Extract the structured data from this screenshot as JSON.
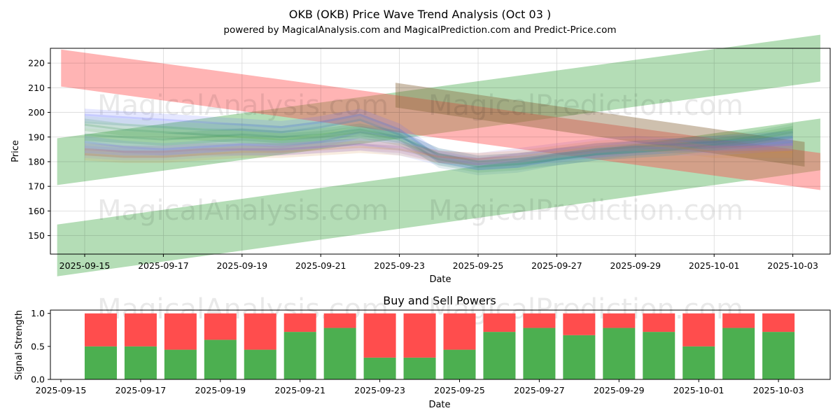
{
  "chart_data": [
    {
      "type": "area",
      "title": "OKB (OKB) Price Wave Trend Analysis (Oct 03 )",
      "subtitle": "powered by MagicalAnalysis.com and MagicalPrediction.com and Predict-Price.com",
      "xlabel": "Date",
      "ylabel": "Price",
      "ylim": [
        142.5,
        226
      ],
      "y_ticks": [
        150,
        160,
        170,
        180,
        190,
        200,
        210,
        220
      ],
      "x_ticks": [
        "2025-09-15",
        "2025-09-17",
        "2025-09-19",
        "2025-09-21",
        "2025-09-23",
        "2025-09-25",
        "2025-09-27",
        "2025-09-29",
        "2025-10-01",
        "2025-10-03"
      ],
      "grid": true,
      "watermarks": [
        "MagicalAnalysis.com",
        "MagicalPrediction.com",
        "MagicalAnalysis.com",
        "MagicalPrediction.com"
      ],
      "trend_bands": [
        {
          "name": "green-upper-band",
          "color": "#4caf50",
          "x": [
            -0.7,
            18.7
          ],
          "center": [
            180,
            222
          ],
          "width": 19
        },
        {
          "name": "green-lower-band",
          "color": "#4caf50",
          "x": [
            -0.7,
            18.7
          ],
          "center": [
            144,
            187
          ],
          "width": 21
        },
        {
          "name": "red-down-band",
          "color": "#ff4d4d",
          "x": [
            -0.6,
            18.7
          ],
          "center": [
            218,
            176
          ],
          "width": 15
        },
        {
          "name": "brown-peak-band",
          "color": "#8b6a3e",
          "x": [
            7.9,
            18.3
          ],
          "center": [
            207,
            183
          ],
          "width": 10
        }
      ],
      "wave_days": [
        0,
        1,
        2,
        3,
        4,
        5,
        6,
        7,
        8,
        9,
        10,
        11,
        12,
        13,
        14,
        15,
        16,
        17,
        18
      ],
      "wave_series": [
        {
          "name": "blue-wave-1",
          "color": "#5f6cff",
          "values": [
            199,
            198,
            197,
            196,
            195,
            194,
            196,
            199,
            193,
            182,
            179,
            180,
            183,
            184,
            186,
            187,
            188,
            189,
            190
          ]
        },
        {
          "name": "blue-wave-2",
          "color": "#6f7cff",
          "values": [
            188,
            186,
            185,
            186,
            187,
            186,
            188,
            192,
            190,
            183,
            180,
            181,
            182,
            184,
            185,
            186,
            186,
            187,
            188
          ]
        },
        {
          "name": "blue-wave-3",
          "color": "#8a94ff",
          "values": [
            184,
            183,
            183,
            184,
            185,
            185,
            186,
            187,
            185,
            181,
            179,
            180,
            181,
            183,
            184,
            185,
            185,
            186,
            187
          ]
        },
        {
          "name": "green-wave-1",
          "color": "#3e9a48",
          "values": [
            195,
            193,
            192,
            191,
            190,
            189,
            190,
            192,
            189,
            181,
            178,
            179,
            181,
            183,
            184,
            185,
            187,
            189,
            192
          ]
        },
        {
          "name": "green-wave-2",
          "color": "#2e8b57",
          "values": [
            191,
            190,
            189,
            190,
            191,
            190,
            191,
            193,
            190,
            183,
            180,
            181,
            183,
            185,
            186,
            187,
            188,
            190,
            193
          ]
        },
        {
          "name": "teal-wave",
          "color": "#4a8fa0",
          "values": [
            196,
            195,
            194,
            193,
            193,
            192,
            194,
            197,
            191,
            180,
            177,
            178,
            181,
            183,
            185,
            186,
            187,
            188,
            190
          ]
        },
        {
          "name": "purple-wave",
          "color": "#9b59b6",
          "values": [
            185,
            184,
            184,
            185,
            185,
            185,
            186,
            187,
            186,
            182,
            181,
            183,
            185,
            187,
            188,
            187,
            186,
            186,
            187
          ]
        },
        {
          "name": "orange-wave",
          "color": "#d2883e",
          "values": [
            183,
            182,
            182,
            183,
            184,
            184,
            185,
            186,
            185,
            182,
            181,
            182,
            184,
            186,
            187,
            186,
            184,
            184,
            184
          ]
        }
      ]
    },
    {
      "type": "bar",
      "title": "Buy and Sell Powers",
      "xlabel": "Date",
      "ylabel": "Signal Strength",
      "ylim": [
        0,
        1.05
      ],
      "y_ticks": [
        "0.0",
        "0.5",
        "1.0"
      ],
      "x_ticks": [
        "2025-09-15",
        "2025-09-17",
        "2025-09-19",
        "2025-09-21",
        "2025-09-23",
        "2025-09-25",
        "2025-09-27",
        "2025-09-29",
        "2025-10-01",
        "2025-10-03"
      ],
      "categories": [
        "2025-09-16",
        "2025-09-17",
        "2025-09-18",
        "2025-09-19",
        "2025-09-20",
        "2025-09-21",
        "2025-09-22",
        "2025-09-23",
        "2025-09-24",
        "2025-09-25",
        "2025-09-26",
        "2025-09-27",
        "2025-09-28",
        "2025-09-29",
        "2025-09-30",
        "2025-10-01",
        "2025-10-02",
        "2025-10-03"
      ],
      "series": [
        {
          "name": "Buy",
          "color": "#4caf50",
          "values": [
            0.5,
            0.5,
            0.45,
            0.6,
            0.45,
            0.72,
            0.78,
            0.33,
            0.33,
            0.45,
            0.72,
            0.78,
            0.67,
            0.78,
            0.72,
            0.5,
            0.78,
            0.72
          ]
        },
        {
          "name": "Sell",
          "color": "#ff4d4d",
          "values": [
            0.5,
            0.5,
            0.55,
            0.4,
            0.55,
            0.28,
            0.22,
            0.67,
            0.67,
            0.55,
            0.28,
            0.22,
            0.33,
            0.22,
            0.28,
            0.5,
            0.22,
            0.28
          ]
        }
      ]
    }
  ]
}
